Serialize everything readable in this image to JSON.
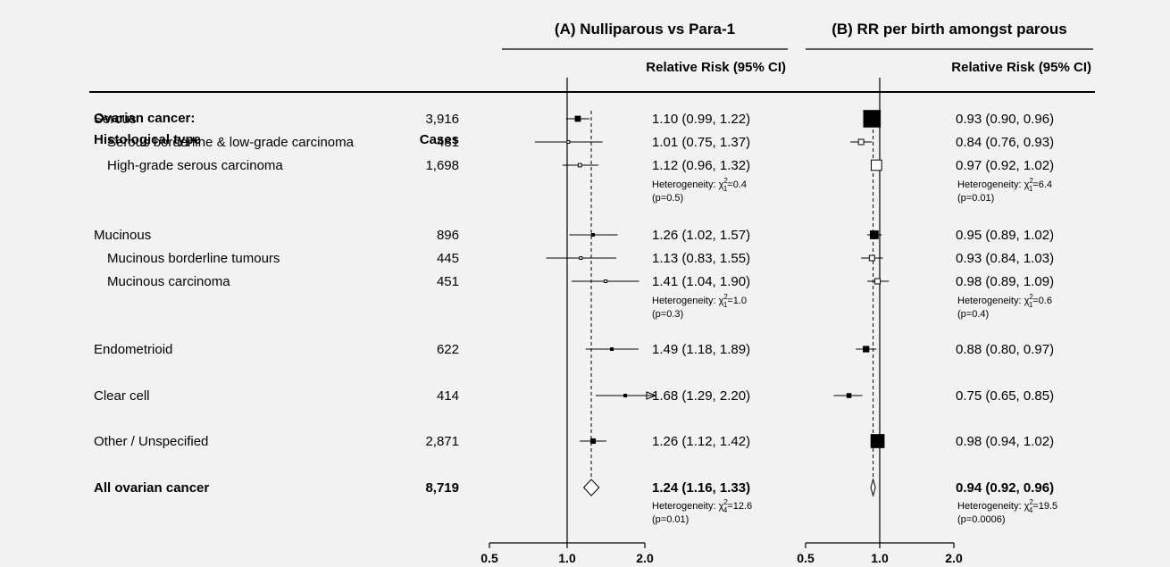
{
  "header": {
    "line1": "Ovarian cancer:",
    "line2": "Histological type",
    "cases": "Cases"
  },
  "panels": [
    {
      "title": "(A) Nulliparous vs Para-1",
      "rr_header": "Relative Risk (95% CI)"
    },
    {
      "title": "(B) RR per birth amongst parous",
      "rr_header": "Relative Risk (95% CI)"
    }
  ],
  "chart_data": {
    "type": "forest",
    "xscale": "log",
    "xticks": [
      "0.5",
      "1.0",
      "2.0"
    ],
    "xlim": [
      0.5,
      2.0
    ],
    "rows": [
      {
        "label": "Serous",
        "cases": "3,916",
        "indent": 0,
        "bold": false,
        "A": {
          "rr": 1.1,
          "lo": 0.99,
          "hi": 1.22,
          "text": "1.10 (0.99, 1.22)",
          "marker": "filled"
        },
        "B": {
          "rr": 0.93,
          "lo": 0.9,
          "hi": 0.96,
          "text": "0.93 (0.90, 0.96)",
          "marker": "filled"
        }
      },
      {
        "label": "Serous borderline & low-grade carcinoma",
        "cases": "481",
        "indent": 1,
        "bold": false,
        "A": {
          "rr": 1.01,
          "lo": 0.75,
          "hi": 1.37,
          "text": "1.01 (0.75, 1.37)",
          "marker": "open"
        },
        "B": {
          "rr": 0.84,
          "lo": 0.76,
          "hi": 0.93,
          "text": "0.84 (0.76, 0.93)",
          "marker": "open"
        }
      },
      {
        "label": "High-grade serous carcinoma",
        "cases": "1,698",
        "indent": 1,
        "bold": false,
        "A": {
          "rr": 1.12,
          "lo": 0.96,
          "hi": 1.32,
          "text": "1.12 (0.96, 1.32)",
          "marker": "open"
        },
        "B": {
          "rr": 0.97,
          "lo": 0.92,
          "hi": 1.02,
          "text": "0.97 (0.92, 1.02)",
          "marker": "open"
        }
      },
      {
        "label": "Mucinous",
        "cases": "896",
        "indent": 0,
        "bold": false,
        "A": {
          "rr": 1.26,
          "lo": 1.02,
          "hi": 1.57,
          "text": "1.26 (1.02, 1.57)",
          "marker": "filled"
        },
        "B": {
          "rr": 0.95,
          "lo": 0.89,
          "hi": 1.02,
          "text": "0.95 (0.89, 1.02)",
          "marker": "filled"
        }
      },
      {
        "label": "Mucinous borderline tumours",
        "cases": "445",
        "indent": 1,
        "bold": false,
        "A": {
          "rr": 1.13,
          "lo": 0.83,
          "hi": 1.55,
          "text": "1.13 (0.83, 1.55)",
          "marker": "open"
        },
        "B": {
          "rr": 0.93,
          "lo": 0.84,
          "hi": 1.03,
          "text": "0.93 (0.84, 1.03)",
          "marker": "open"
        }
      },
      {
        "label": "Mucinous carcinoma",
        "cases": "451",
        "indent": 1,
        "bold": false,
        "A": {
          "rr": 1.41,
          "lo": 1.04,
          "hi": 1.9,
          "text": "1.41 (1.04, 1.90)",
          "marker": "open"
        },
        "B": {
          "rr": 0.98,
          "lo": 0.89,
          "hi": 1.09,
          "text": "0.98 (0.89, 1.09)",
          "marker": "open"
        }
      },
      {
        "label": "Endometrioid",
        "cases": "622",
        "indent": 0,
        "bold": false,
        "A": {
          "rr": 1.49,
          "lo": 1.18,
          "hi": 1.89,
          "text": "1.49 (1.18, 1.89)",
          "marker": "filled"
        },
        "B": {
          "rr": 0.88,
          "lo": 0.8,
          "hi": 0.97,
          "text": "0.88 (0.80, 0.97)",
          "marker": "filled"
        }
      },
      {
        "label": "Clear cell",
        "cases": "414",
        "indent": 0,
        "bold": false,
        "A": {
          "rr": 1.68,
          "lo": 1.29,
          "hi": 2.2,
          "text": "1.68 (1.29, 2.20)",
          "marker": "filled",
          "arrow": true
        },
        "B": {
          "rr": 0.75,
          "lo": 0.65,
          "hi": 0.85,
          "text": "0.75 (0.65, 0.85)",
          "marker": "filled"
        }
      },
      {
        "label": "Other / Unspecified",
        "cases": "2,871",
        "indent": 0,
        "bold": false,
        "A": {
          "rr": 1.26,
          "lo": 1.12,
          "hi": 1.42,
          "text": "1.26 (1.12, 1.42)",
          "marker": "filled"
        },
        "B": {
          "rr": 0.98,
          "lo": 0.94,
          "hi": 1.02,
          "text": "0.98 (0.94, 1.02)",
          "marker": "filled"
        }
      },
      {
        "label": "All ovarian cancer",
        "cases": "8,719",
        "indent": 0,
        "bold": true,
        "A": {
          "rr": 1.24,
          "lo": 1.16,
          "hi": 1.33,
          "text": "1.24 (1.16, 1.33)",
          "marker": "diamond"
        },
        "B": {
          "rr": 0.94,
          "lo": 0.92,
          "hi": 0.96,
          "text": "0.94 (0.92, 0.96)",
          "marker": "diamond"
        }
      }
    ],
    "heterogeneity": [
      {
        "after": "High-grade serous carcinoma",
        "A": {
          "prefix": "Heterogeneity: χ",
          "sup": "2",
          "sub": "1",
          "value": "=0.4",
          "p": "(p=0.5)"
        },
        "B": {
          "prefix": "Heterogeneity: χ",
          "sup": "2",
          "sub": "1",
          "value": "=6.4",
          "p": "(p=0.01)"
        }
      },
      {
        "after": "Mucinous carcinoma",
        "A": {
          "prefix": "Heterogeneity: χ",
          "sup": "2",
          "sub": "1",
          "value": "=1.0",
          "p": "(p=0.3)"
        },
        "B": {
          "prefix": "Heterogeneity: χ",
          "sup": "2",
          "sub": "1",
          "value": "=0.6",
          "p": "(p=0.4)"
        }
      },
      {
        "after": "All ovarian cancer",
        "A": {
          "prefix": "Heterogeneity: χ",
          "sup": "2",
          "sub": "4",
          "value": "=12.6",
          "p": "(p=0.01)"
        },
        "B": {
          "prefix": "Heterogeneity: χ",
          "sup": "2",
          "sub": "4",
          "value": "=19.5",
          "p": "(p=0.0006)"
        }
      }
    ]
  }
}
